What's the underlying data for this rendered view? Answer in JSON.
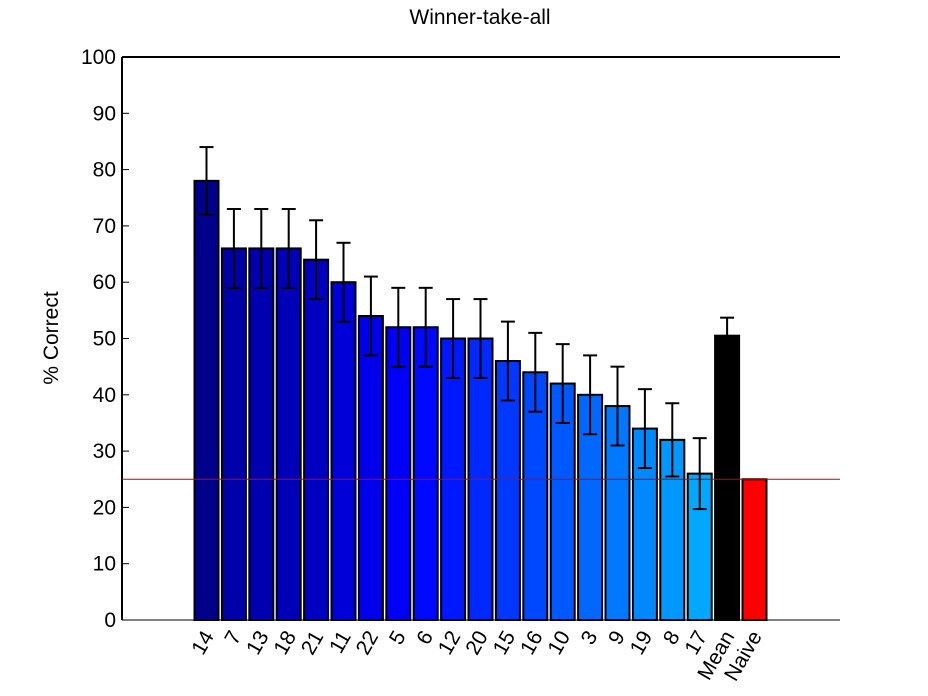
{
  "chart_data": {
    "type": "bar",
    "title": "Winner-take-all",
    "xlabel": "",
    "ylabel": "% Correct",
    "ylim": [
      0,
      100
    ],
    "yticks": [
      0,
      10,
      20,
      30,
      40,
      50,
      60,
      70,
      80,
      90,
      100
    ],
    "grid": false,
    "categories": [
      "14",
      "7",
      "13",
      "18",
      "21",
      "11",
      "22",
      "5",
      "6",
      "12",
      "20",
      "15",
      "16",
      "10",
      "3",
      "9",
      "19",
      "8",
      "17",
      "Mean",
      "Naive"
    ],
    "values": [
      78,
      66,
      66,
      66,
      64,
      60,
      54,
      52,
      52,
      50,
      50,
      46,
      44,
      42,
      40,
      38,
      34,
      32,
      26,
      50.5,
      25
    ],
    "errors": [
      6,
      7,
      7,
      7,
      7,
      7,
      7,
      7,
      7,
      7,
      7,
      7,
      7,
      7,
      7,
      7,
      7,
      6.5,
      6.3,
      3.2,
      null
    ],
    "bar_colors": [
      "#00008a",
      "#0000a8",
      "#0000b0",
      "#0000b8",
      "#0000c0",
      "#0000d8",
      "#0000ea",
      "#0000f8",
      "#0008ff",
      "#0018ff",
      "#0028ff",
      "#0038ff",
      "#0048ff",
      "#0058ff",
      "#0068ff",
      "#0078ff",
      "#0088ff",
      "#0098ff",
      "#00a8ff",
      "#000000",
      "#ff0000"
    ],
    "reference_line": {
      "y": 25,
      "color": "#cc0000"
    }
  }
}
